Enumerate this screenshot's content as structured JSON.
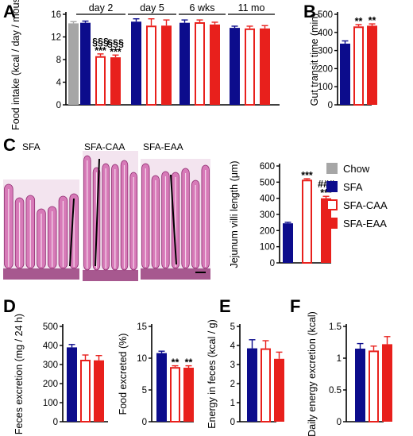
{
  "colors": {
    "chow": "#a6a6a6",
    "sfa": "#0c0c8c",
    "sfa_caa": "#e8201c",
    "sfa_eaa": "#e8201c",
    "tissue": "#d77ab8",
    "tissue_dark": "#8e2a6f"
  },
  "legend": {
    "items": [
      {
        "label": "Chow",
        "style": "chow"
      },
      {
        "label": "SFA",
        "style": "sfa"
      },
      {
        "label": "SFA-CAA",
        "style": "sfa_caa"
      },
      {
        "label": "SFA-EAA",
        "style": "sfa_eaa"
      }
    ]
  },
  "micrograph": {
    "labels": [
      "SFA",
      "SFA-CAA",
      "SFA-EAA"
    ]
  },
  "chart_data": [
    {
      "panel": "A",
      "type": "bar",
      "ylabel": "Food intake (kcal / day / mouse)",
      "ylim": [
        0,
        16
      ],
      "yticks": [
        0,
        4,
        8,
        12,
        16
      ],
      "groups": [
        {
          "label": "",
          "bars": [
            {
              "style": "chow",
              "value": 14.4,
              "err": 0.3,
              "sig": []
            }
          ]
        },
        {
          "label": "day 2",
          "bars": [
            {
              "style": "sfa",
              "value": 14.5,
              "err": 0.3,
              "sig": []
            },
            {
              "style": "sfa_caa",
              "value": 8.6,
              "err": 0.4,
              "sig": [
                "§§§",
                "***"
              ]
            },
            {
              "style": "sfa_eaa",
              "value": 8.4,
              "err": 0.4,
              "sig": [
                "§§§",
                "***"
              ]
            }
          ]
        },
        {
          "label": "day 5",
          "bars": [
            {
              "style": "sfa",
              "value": 14.7,
              "err": 0.5,
              "sig": []
            },
            {
              "style": "sfa_caa",
              "value": 14.0,
              "err": 1.2,
              "sig": []
            },
            {
              "style": "sfa_eaa",
              "value": 14.0,
              "err": 1.0,
              "sig": []
            }
          ]
        },
        {
          "label": "6 wks",
          "bars": [
            {
              "style": "sfa",
              "value": 14.5,
              "err": 0.5,
              "sig": []
            },
            {
              "style": "sfa_caa",
              "value": 14.6,
              "err": 0.4,
              "sig": []
            },
            {
              "style": "sfa_eaa",
              "value": 14.2,
              "err": 0.4,
              "sig": []
            }
          ]
        },
        {
          "label": "11 mo",
          "bars": [
            {
              "style": "sfa",
              "value": 13.6,
              "err": 0.3,
              "sig": []
            },
            {
              "style": "sfa_caa",
              "value": 13.5,
              "err": 0.4,
              "sig": []
            },
            {
              "style": "sfa_eaa",
              "value": 13.5,
              "err": 0.5,
              "sig": []
            }
          ]
        }
      ]
    },
    {
      "panel": "B",
      "type": "bar",
      "ylabel": "Gut transit time (min)",
      "ylim": [
        0,
        500
      ],
      "yticks": [
        0,
        100,
        200,
        300,
        400,
        500
      ],
      "bars": [
        {
          "style": "sfa",
          "value": 338,
          "err": 15,
          "sig": []
        },
        {
          "style": "sfa_caa",
          "value": 433,
          "err": 10,
          "sig": [
            "**"
          ]
        },
        {
          "style": "sfa_eaa",
          "value": 437,
          "err": 10,
          "sig": [
            "**"
          ]
        }
      ]
    },
    {
      "panel": "C",
      "type": "bar",
      "ylabel": "Jejunum villi length (μm)",
      "ylim": [
        0,
        600
      ],
      "yticks": [
        0,
        100,
        200,
        300,
        400,
        500,
        600
      ],
      "bars": [
        {
          "style": "sfa",
          "value": 245,
          "err": 6,
          "sig": []
        },
        {
          "style": "sfa_caa",
          "value": 515,
          "err": 6,
          "sig": [
            "***"
          ]
        },
        {
          "style": "sfa_eaa",
          "value": 400,
          "err": 12,
          "sig": [
            "###",
            "***"
          ]
        }
      ]
    },
    {
      "panel": "D",
      "type": "bar",
      "ylabel": "Feces excretion (mg / 24 h)",
      "ylim": [
        0,
        500
      ],
      "yticks": [
        0,
        100,
        200,
        300,
        400,
        500
      ],
      "bars": [
        {
          "style": "sfa",
          "value": 390,
          "err": 15,
          "sig": []
        },
        {
          "style": "sfa_caa",
          "value": 325,
          "err": 25,
          "sig": []
        },
        {
          "style": "sfa_eaa",
          "value": 322,
          "err": 25,
          "sig": []
        }
      ]
    },
    {
      "panel": "",
      "type": "bar",
      "ylabel": "Food excreted (%)",
      "ylim": [
        0,
        15
      ],
      "yticks": [
        0,
        5,
        10,
        15
      ],
      "bars": [
        {
          "style": "sfa",
          "value": 10.8,
          "err": 0.3,
          "sig": []
        },
        {
          "style": "sfa_caa",
          "value": 8.6,
          "err": 0.2,
          "sig": [
            "**"
          ]
        },
        {
          "style": "sfa_eaa",
          "value": 8.5,
          "err": 0.3,
          "sig": [
            "**"
          ]
        }
      ]
    },
    {
      "panel": "E",
      "type": "bar",
      "ylabel": "Energy in feces (kcal / g)",
      "ylim": [
        0,
        5
      ],
      "yticks": [
        0,
        1,
        2,
        3,
        4,
        5
      ],
      "bars": [
        {
          "style": "sfa",
          "value": 3.85,
          "err": 0.45,
          "sig": []
        },
        {
          "style": "sfa_caa",
          "value": 3.85,
          "err": 0.4,
          "sig": []
        },
        {
          "style": "sfa_eaa",
          "value": 3.3,
          "err": 0.35,
          "sig": []
        }
      ]
    },
    {
      "panel": "F",
      "type": "bar",
      "ylabel": "Daily energy excretion (kcal)",
      "ylim": [
        0,
        1.5
      ],
      "yticks": [
        0,
        0.5,
        1.0,
        1.5
      ],
      "bars": [
        {
          "style": "sfa",
          "value": 1.15,
          "err": 0.08,
          "sig": []
        },
        {
          "style": "sfa_caa",
          "value": 1.12,
          "err": 0.07,
          "sig": []
        },
        {
          "style": "sfa_eaa",
          "value": 1.22,
          "err": 0.12,
          "sig": []
        }
      ]
    }
  ]
}
